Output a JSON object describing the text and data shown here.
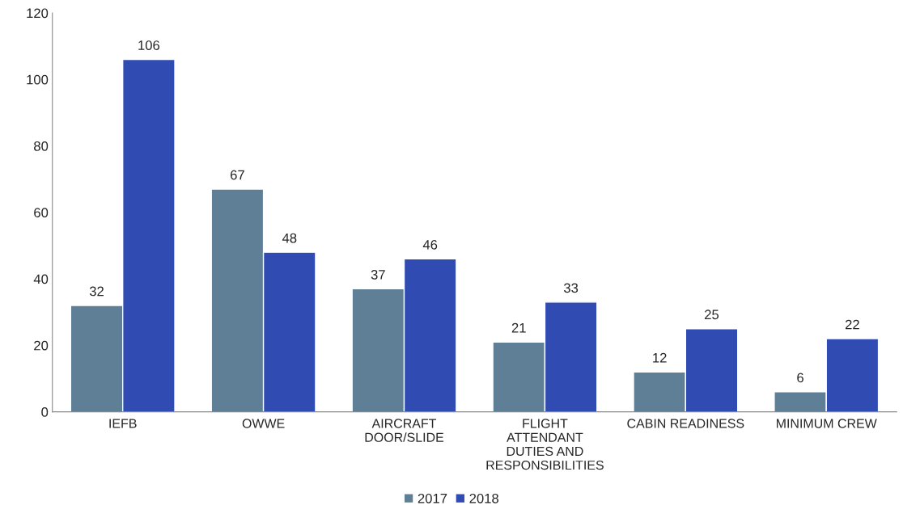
{
  "chart_data": {
    "type": "bar",
    "categories": [
      "IEFB",
      "OWWE",
      "AIRCRAFT\nDOOR/SLIDE",
      "FLIGHT\nATTENDANT\nDUTIES AND\nRESPONSIBILITIES",
      "CABIN READINESS",
      "MINIMUM CREW"
    ],
    "series": [
      {
        "name": "2017",
        "color": "#5f7f96",
        "values": [
          32,
          67,
          37,
          21,
          12,
          6
        ]
      },
      {
        "name": "2018",
        "color": "#304cb2",
        "values": [
          106,
          48,
          46,
          33,
          25,
          22
        ]
      }
    ],
    "ylim": [
      0,
      120
    ],
    "yticks": [
      0,
      20,
      40,
      60,
      80,
      100,
      120
    ],
    "grid": false,
    "legend": "bottom",
    "data_labels": true
  }
}
